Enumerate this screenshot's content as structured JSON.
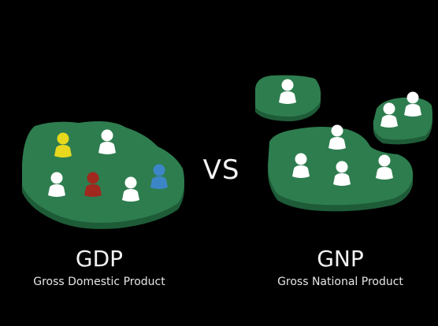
{
  "comparison": {
    "left": {
      "abbreviation": "GDP",
      "full_name": "Gross Domestic Product"
    },
    "separator": "VS",
    "right": {
      "abbreviation": "GNP",
      "full_name": "Gross National Product"
    }
  },
  "colors": {
    "background": "#000000",
    "land": "#2e7d4f",
    "land_edge": "#1e5c38",
    "person_default": "#ffffff",
    "person_yellow": "#e8d81e",
    "person_red": "#a0281e",
    "person_blue": "#3c86c8",
    "text": "#f2f2f2"
  },
  "icons": {
    "person": "person-icon",
    "island": "island-shape"
  }
}
